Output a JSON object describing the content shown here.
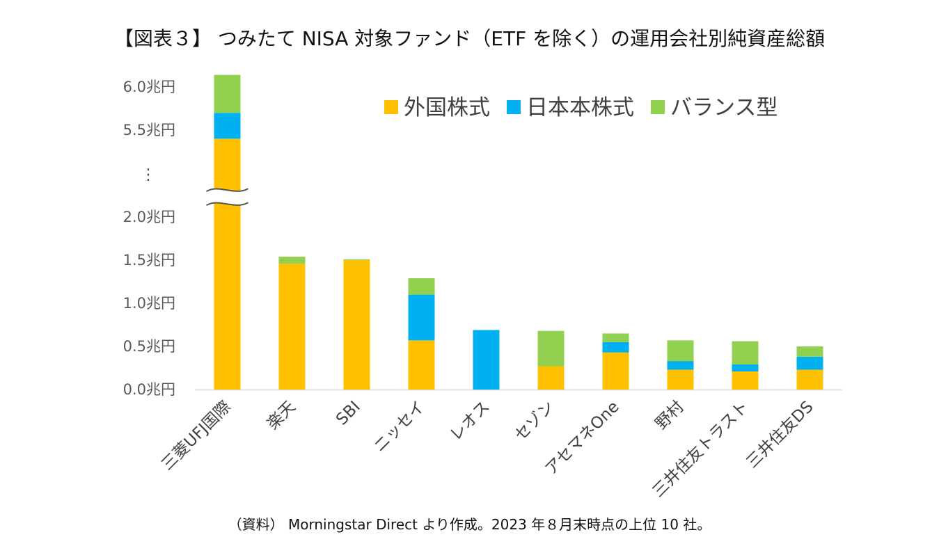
{
  "title": "【図表３】 つみたて NISA 対象ファンド（ETF を除く）の運用会社別純資産総額",
  "source": "（資料） Morningstar Direct より作成。2023 年８月末時点の上位 10 社。",
  "chart_data": {
    "type": "bar",
    "stacked": true,
    "categories": [
      "三菱UFJ国際",
      "楽天",
      "SBI",
      "ニッセイ",
      "レオス",
      "セゾン",
      "アセマネOne",
      "野村",
      "三井住友トラスト",
      "三井住友DS"
    ],
    "series": [
      {
        "name": "外国株式",
        "color": "#FFC000",
        "values": [
          5.4,
          1.46,
          1.5,
          0.57,
          0.0,
          0.27,
          0.43,
          0.23,
          0.21,
          0.23
        ]
      },
      {
        "name": "日本本株式",
        "color": "#00B0F0",
        "values": [
          0.3,
          0.0,
          0.0,
          0.53,
          0.69,
          0.0,
          0.12,
          0.1,
          0.08,
          0.15
        ]
      },
      {
        "name": "バランス型",
        "color": "#92D050",
        "values": [
          0.44,
          0.08,
          0.01,
          0.19,
          0.0,
          0.41,
          0.1,
          0.24,
          0.27,
          0.12
        ]
      }
    ],
    "y_ticks": [
      "0.0兆円",
      "0.5兆円",
      "1.0兆円",
      "1.5兆円",
      "2.0兆円",
      "5.5兆円",
      "6.0兆円"
    ],
    "y_axis_break": {
      "from": 2.2,
      "to": 5.2,
      "marker": "⋮"
    },
    "ylim": [
      0,
      6.2
    ],
    "grid": false,
    "legend_position": "top-right"
  }
}
